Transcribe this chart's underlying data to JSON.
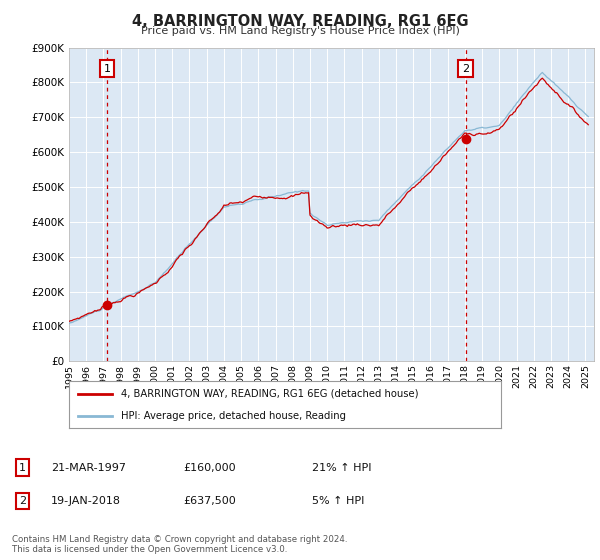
{
  "title": "4, BARRINGTON WAY, READING, RG1 6EG",
  "subtitle": "Price paid vs. HM Land Registry's House Price Index (HPI)",
  "ylim": [
    0,
    900000
  ],
  "yticks": [
    0,
    100000,
    200000,
    300000,
    400000,
    500000,
    600000,
    700000,
    800000,
    900000
  ],
  "ytick_labels": [
    "£0",
    "£100K",
    "£200K",
    "£300K",
    "£400K",
    "£500K",
    "£600K",
    "£700K",
    "£800K",
    "£900K"
  ],
  "xtick_years": [
    1995,
    1996,
    1997,
    1998,
    1999,
    2000,
    2001,
    2002,
    2003,
    2004,
    2005,
    2006,
    2007,
    2008,
    2009,
    2010,
    2011,
    2012,
    2013,
    2014,
    2015,
    2016,
    2017,
    2018,
    2019,
    2020,
    2021,
    2022,
    2023,
    2024,
    2025
  ],
  "sale1_x": 1997.21,
  "sale1_y": 160000,
  "sale1_label": "1",
  "sale1_date": "21-MAR-1997",
  "sale1_price": "£160,000",
  "sale1_hpi": "21% ↑ HPI",
  "sale2_x": 2018.05,
  "sale2_y": 637500,
  "sale2_label": "2",
  "sale2_date": "19-JAN-2018",
  "sale2_price": "£637,500",
  "sale2_hpi": "5% ↑ HPI",
  "line_color_red": "#cc0000",
  "line_color_blue": "#89b8d4",
  "plot_bg_color": "#dce8f4",
  "grid_color": "#ffffff",
  "legend_label_red": "4, BARRINGTON WAY, READING, RG1 6EG (detached house)",
  "legend_label_blue": "HPI: Average price, detached house, Reading",
  "footnote": "Contains HM Land Registry data © Crown copyright and database right 2024.\nThis data is licensed under the Open Government Licence v3.0."
}
